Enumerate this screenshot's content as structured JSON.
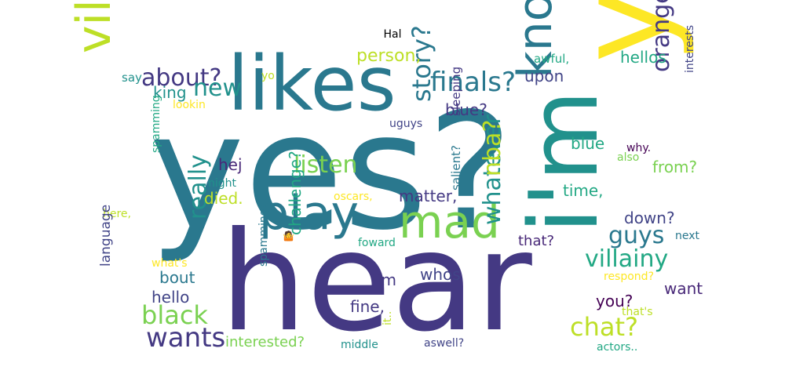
{
  "chart_data": {
    "type": "wordcloud",
    "title": "Hal",
    "background": "#ffffff",
    "palette": "viridis",
    "words": [
      {
        "text": "yes?",
        "color": "#2a788e"
      },
      {
        "text": "hear",
        "color": "#443983"
      },
      {
        "text": "ye",
        "color": "#fde725"
      },
      {
        "text": "likes",
        "color": "#2a788e"
      },
      {
        "text": "i'm",
        "color": "#21918c"
      },
      {
        "text": "know,",
        "color": "#2a788e"
      },
      {
        "text": "mad",
        "color": "#7ad151"
      },
      {
        "text": "villain?",
        "color": "#bddf26"
      },
      {
        "text": "play",
        "color": "#2a788e"
      },
      {
        "text": "finals?",
        "color": "#2a788e"
      },
      {
        "text": "about?",
        "color": "#443983"
      },
      {
        "text": "new",
        "color": "#21918c"
      },
      {
        "text": "listen",
        "color": "#7ad151"
      },
      {
        "text": "story?",
        "color": "#2a788e"
      },
      {
        "text": "whatever",
        "color": "#21918c"
      },
      {
        "text": "nba?",
        "color": "#bddf26"
      },
      {
        "text": "orange",
        "color": "#443983"
      },
      {
        "text": "villainy",
        "color": "#22a884"
      },
      {
        "text": "guys",
        "color": "#2a788e"
      },
      {
        "text": "really",
        "color": "#21918c"
      },
      {
        "text": "black",
        "color": "#7ad151"
      },
      {
        "text": "wants",
        "color": "#443983"
      },
      {
        "text": "chat?",
        "color": "#bddf26"
      },
      {
        "text": "person,",
        "color": "#bddf26"
      },
      {
        "text": "hellos",
        "color": "#22a884"
      },
      {
        "text": "upon",
        "color": "#414487"
      },
      {
        "text": "king",
        "color": "#21918c"
      },
      {
        "text": "blue?",
        "color": "#443983"
      },
      {
        "text": "blue",
        "color": "#22a884"
      },
      {
        "text": "hej",
        "color": "#482878"
      },
      {
        "text": "died.",
        "color": "#bddf26"
      },
      {
        "text": "matter,",
        "color": "#443983"
      },
      {
        "text": "time,",
        "color": "#22a884"
      },
      {
        "text": "down?",
        "color": "#414487"
      },
      {
        "text": "from?",
        "color": "#7ad151"
      },
      {
        "text": "salient?",
        "color": "#2a788e"
      },
      {
        "text": "sleeping",
        "color": "#443983"
      },
      {
        "text": "uguys",
        "color": "#414487"
      },
      {
        "text": "awful,",
        "color": "#22a884"
      },
      {
        "text": "say",
        "color": "#21918c"
      },
      {
        "text": "yo",
        "color": "#bddf26"
      },
      {
        "text": "lookin",
        "color": "#fde725"
      },
      {
        "text": "interests",
        "color": "#414487"
      },
      {
        "text": "why.",
        "color": "#440154"
      },
      {
        "text": "also",
        "color": "#7ad151"
      },
      {
        "text": "next",
        "color": "#2a788e"
      },
      {
        "text": "night",
        "color": "#21918c"
      },
      {
        "text": "spamming",
        "color": "#22a884"
      },
      {
        "text": "oscars,",
        "color": "#fde725"
      },
      {
        "text": "here,",
        "color": "#bddf26"
      },
      {
        "text": "what's",
        "color": "#fde725"
      },
      {
        "text": "challenge?",
        "color": "#22a884"
      },
      {
        "text": "that?",
        "color": "#482878"
      },
      {
        "text": "foward",
        "color": "#22a884"
      },
      {
        "text": "bout",
        "color": "#2a788e"
      },
      {
        "text": "hello",
        "color": "#414487"
      },
      {
        "text": "im",
        "color": "#443983"
      },
      {
        "text": "whos",
        "color": "#414487"
      },
      {
        "text": "fine,",
        "color": "#443983"
      },
      {
        "text": "you?",
        "color": "#440154"
      },
      {
        "text": "want",
        "color": "#482878"
      },
      {
        "text": "respond?",
        "color": "#fde725"
      },
      {
        "text": "that's",
        "color": "#bddf26"
      },
      {
        "text": "actors..",
        "color": "#22a884"
      },
      {
        "text": "language",
        "color": "#414487"
      },
      {
        "text": "interested?",
        "color": "#7ad151"
      },
      {
        "text": "middle",
        "color": "#21918c"
      },
      {
        "text": "aswell?",
        "color": "#414487"
      },
      {
        "text": "spamming?",
        "color": "#2a788e"
      },
      {
        "text": "it..",
        "color": "#bddf26"
      },
      {
        "text": "🤷",
        "color": "#482878"
      }
    ]
  }
}
